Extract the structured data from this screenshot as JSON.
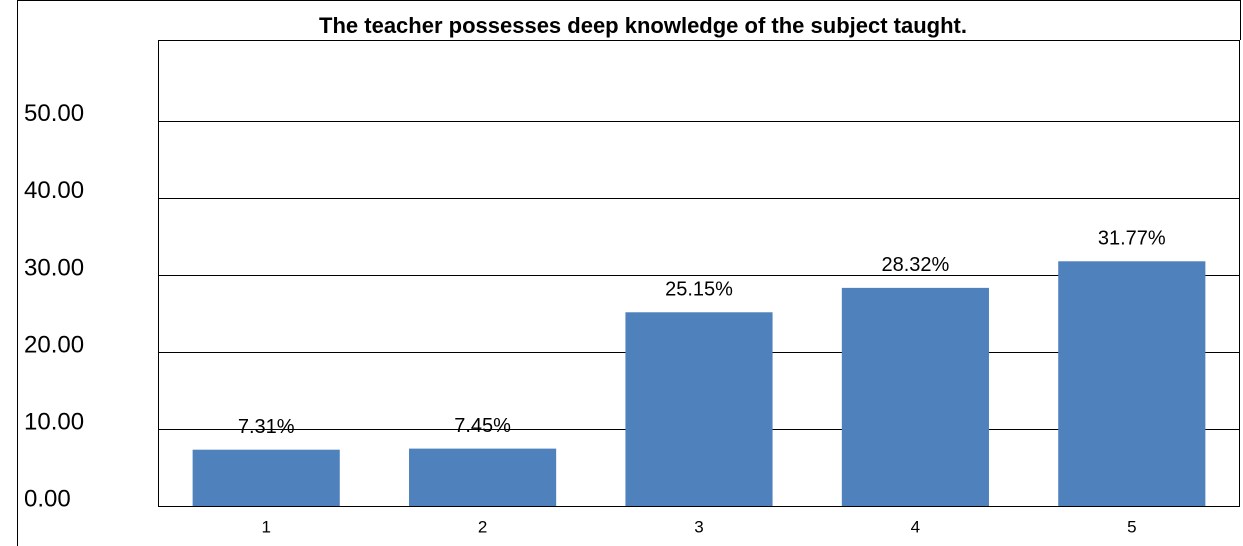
{
  "chart_data": {
    "type": "bar",
    "title": "The teacher possesses deep knowledge of the subject taught.",
    "categories": [
      "1",
      "2",
      "3",
      "4",
      "5"
    ],
    "values": [
      7.31,
      7.45,
      25.15,
      28.32,
      31.77
    ],
    "value_labels": [
      "7.31%",
      "7.45%",
      "25.15%",
      "28.32%",
      "31.77%"
    ],
    "color": "#4f81bd",
    "ylim": [
      0,
      60.5
    ],
    "yticks": [
      {
        "value": 0,
        "label": "0.00"
      },
      {
        "value": 10,
        "label": "10.00"
      },
      {
        "value": 20,
        "label": "20.00"
      },
      {
        "value": 30,
        "label": "30.00"
      },
      {
        "value": 40,
        "label": "40.00"
      },
      {
        "value": 50,
        "label": "50.00"
      }
    ],
    "grid": true
  }
}
